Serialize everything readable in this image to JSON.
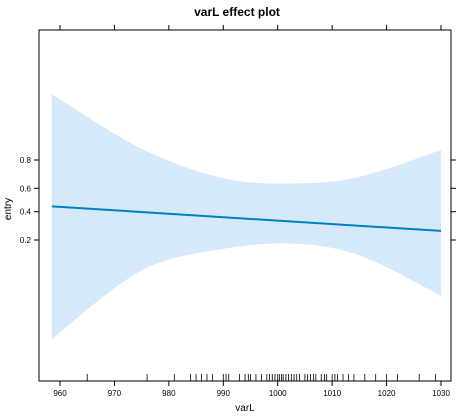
{
  "chart_data": {
    "type": "line",
    "title": "varL effect plot",
    "xlabel": "varL",
    "ylabel": "entry",
    "xlim": [
      957.5,
      1032
    ],
    "x_ticks": [
      960,
      970,
      980,
      990,
      1000,
      1010,
      1020,
      1030
    ],
    "y_ticks": [
      0.2,
      0.4,
      0.6,
      0.8
    ],
    "grid": false,
    "series": [
      {
        "x": [
          958.5,
          1030
        ],
        "y": [
          0.445,
          0.255
        ],
        "color": "#0080C0",
        "ci_lower": [
          0.008,
          0.08,
          0.155,
          0.18,
          0.128,
          0.035
        ],
        "ci_upper": [
          0.975,
          0.855,
          0.68,
          0.64,
          0.69,
          0.85
        ],
        "ci_x": [
          958.5,
          975,
          990,
          1003,
          1015,
          1030
        ],
        "ci_color": "#D6E9FA"
      }
    ],
    "rug_x": [
      965,
      976,
      981,
      984,
      985,
      986,
      987,
      988,
      990,
      990.5,
      991,
      993,
      994,
      994.6,
      995,
      996,
      997,
      998,
      998.5,
      999,
      999.5,
      1000,
      1000.3,
      1000.7,
      1001,
      1001.5,
      1002,
      1002.5,
      1003,
      1003.5,
      1004,
      1005,
      1005.5,
      1006,
      1006.6,
      1007,
      1008,
      1008.6,
      1009,
      1010,
      1010.5,
      1011,
      1012,
      1013,
      1014,
      1016,
      1018,
      1020,
      1022,
      1026,
      1029
    ]
  }
}
